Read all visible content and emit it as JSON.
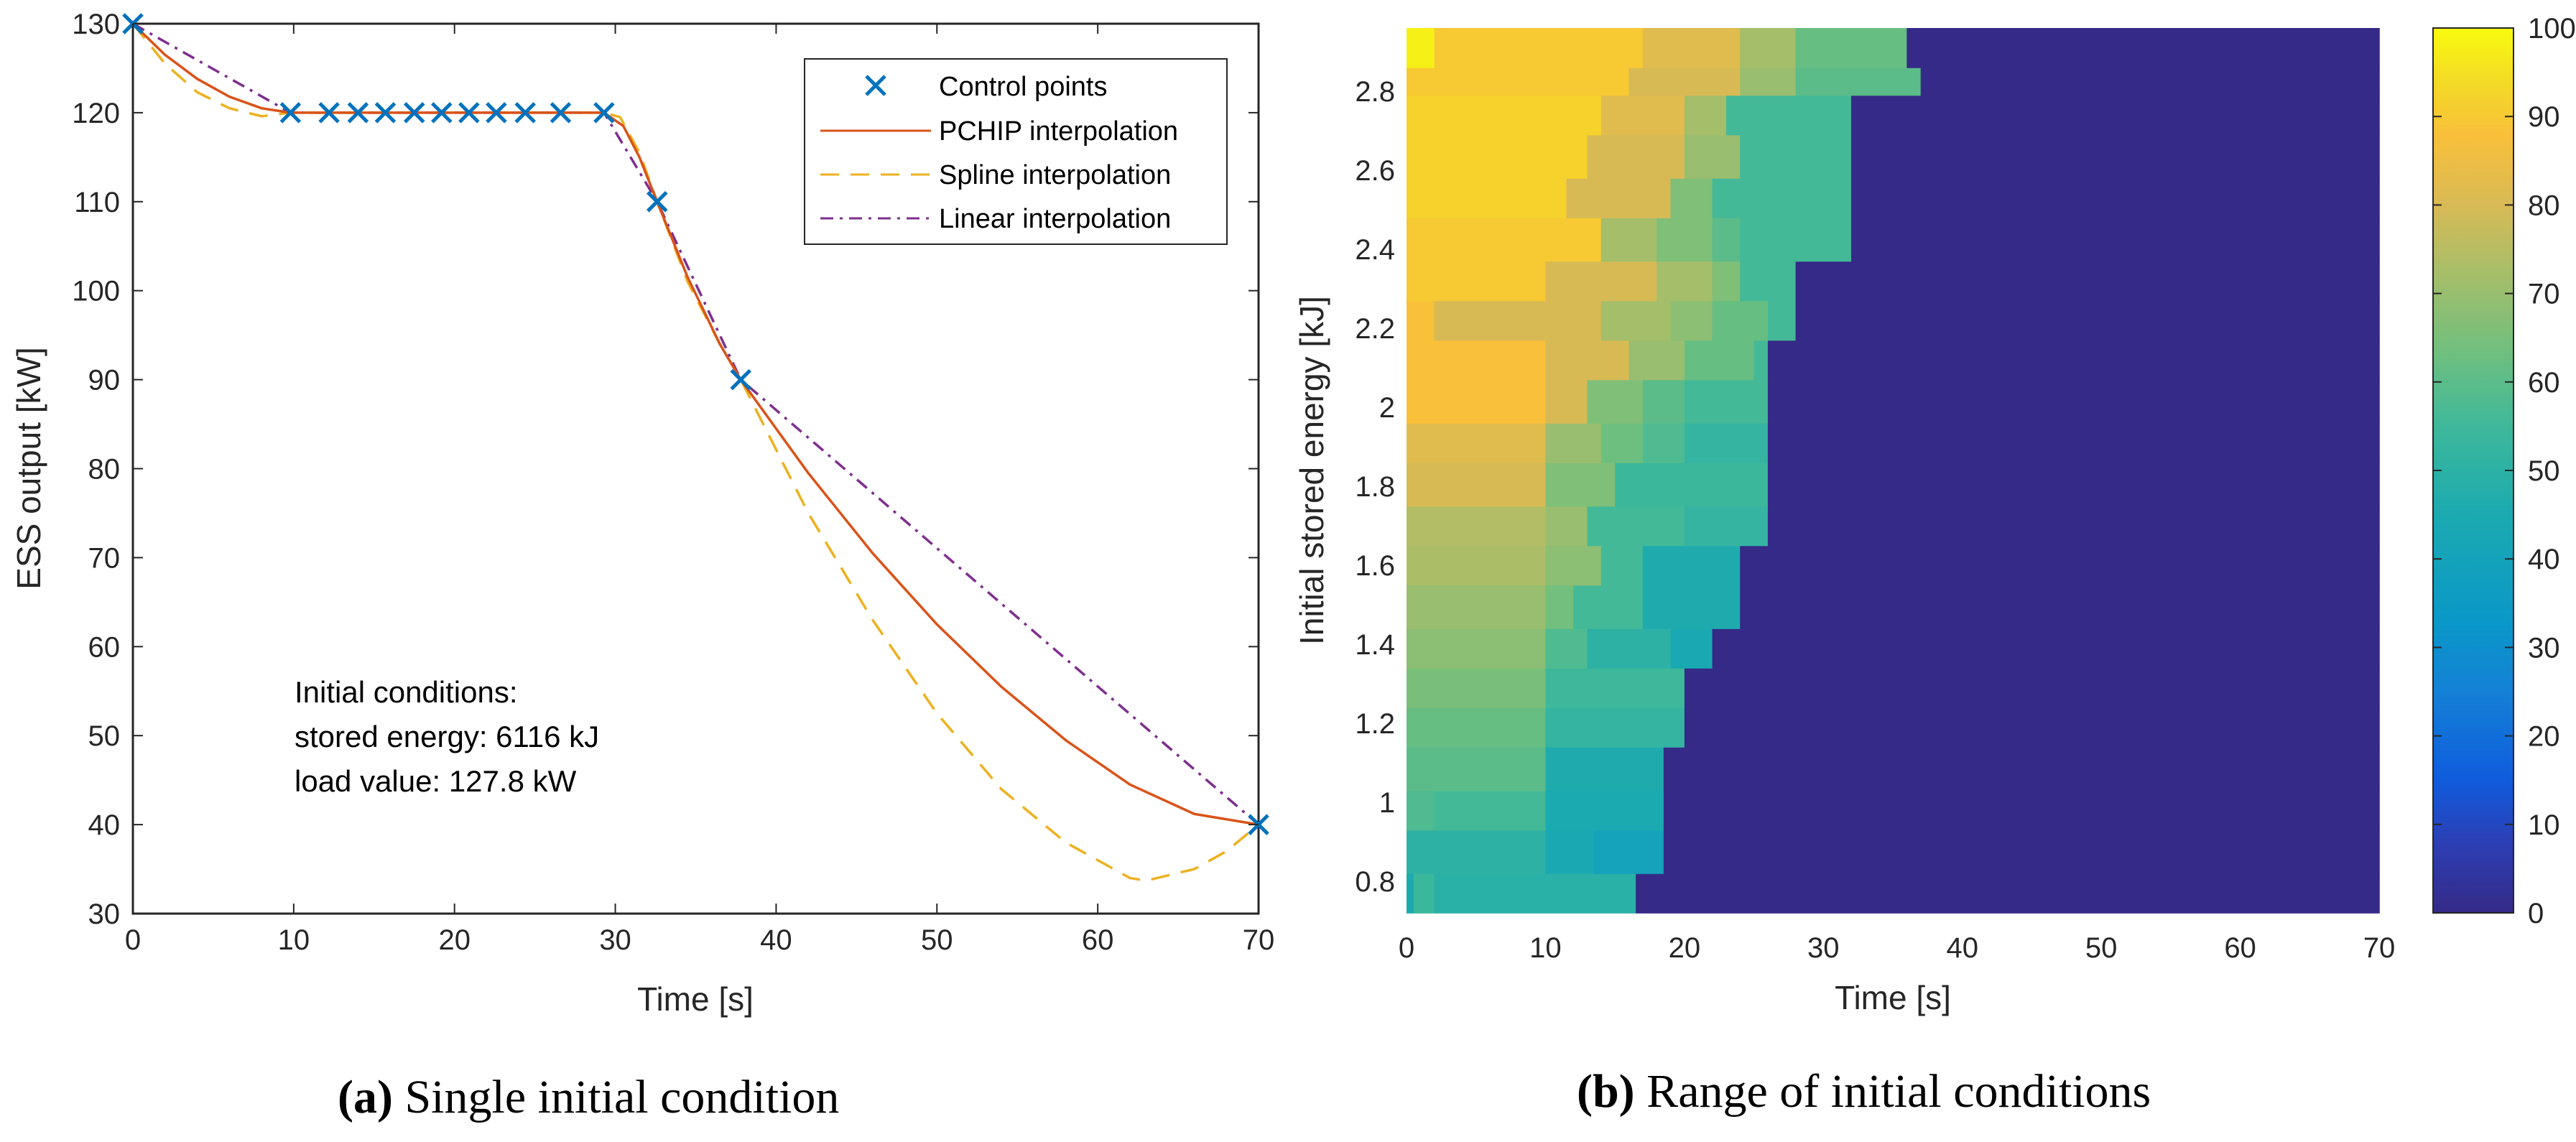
{
  "chart_data": [
    {
      "type": "line",
      "xlabel": "Time [s]",
      "ylabel": "ESS output [kW]",
      "xlim": [
        0,
        70
      ],
      "ylim": [
        30,
        130
      ],
      "xticks": [
        0,
        10,
        20,
        30,
        40,
        50,
        60,
        70
      ],
      "yticks": [
        30,
        40,
        50,
        60,
        70,
        80,
        90,
        100,
        110,
        120,
        130
      ],
      "grid": false,
      "legend_position": "top-right",
      "legend": [
        "Control points",
        "PCHIP interpolation",
        "Spline interpolation",
        "Linear interpolation"
      ],
      "control_points": {
        "x": [
          0,
          9.8,
          12.2,
          14.0,
          15.7,
          17.5,
          19.2,
          20.9,
          22.6,
          24.4,
          26.6,
          29.3,
          32.6,
          37.8,
          70
        ],
        "y": [
          130,
          120,
          120,
          120,
          120,
          120,
          120,
          120,
          120,
          120,
          120,
          120,
          110,
          90,
          40
        ]
      },
      "series": [
        {
          "name": "PCHIP interpolation",
          "style": "solid",
          "color": "#D95319",
          "x": [
            0,
            2,
            4,
            6,
            8,
            9.8,
            29.3,
            30.5,
            31.5,
            32.6,
            34.5,
            36.5,
            37.8,
            42,
            46,
            50,
            54,
            58,
            62,
            66,
            70
          ],
          "y": [
            130,
            126.5,
            123.8,
            121.8,
            120.5,
            120,
            120,
            118.5,
            115,
            110,
            101.5,
            94,
            90,
            79.5,
            70.5,
            62.5,
            55.5,
            49.5,
            44.5,
            41.2,
            40
          ]
        },
        {
          "name": "Spline interpolation",
          "style": "dashed",
          "color": "#EDB120",
          "x": [
            0,
            2,
            4,
            6,
            8,
            9.8,
            29.3,
            30.3,
            31.5,
            32.6,
            34.5,
            36.5,
            37.8,
            42,
            46,
            50,
            54,
            58,
            62,
            63,
            66,
            68,
            70
          ],
          "y": [
            130,
            125.5,
            122.3,
            120.5,
            119.6,
            120,
            120,
            119.5,
            115.5,
            110,
            101,
            94,
            90,
            75,
            63,
            52.5,
            44,
            38,
            34,
            33.7,
            35,
            37,
            40
          ]
        },
        {
          "name": "Linear interpolation",
          "style": "dashdot",
          "color": "#7E2F8E",
          "x": [
            0,
            9.8,
            29.3,
            32.6,
            37.8,
            70
          ],
          "y": [
            130,
            120,
            120,
            110,
            90,
            40
          ]
        }
      ],
      "annotation": [
        "Initial conditions:",
        "stored energy: 6116 kJ",
        "load value: 127.8 kW"
      ]
    },
    {
      "type": "heatmap",
      "xlabel": "Time [s]",
      "ylabel": "Initial stored energy [kJ]",
      "xlim": [
        0,
        70
      ],
      "ylim": [
        0.72,
        2.96
      ],
      "xticks": [
        0,
        10,
        20,
        30,
        40,
        50,
        60,
        70
      ],
      "yticks": [
        0.8,
        1,
        1.2,
        1.4,
        1.6,
        1.8,
        2,
        2.2,
        2.4,
        2.6,
        2.8
      ],
      "colorbar": {
        "min": 0,
        "max": 100,
        "ticks": [
          0,
          10,
          20,
          30,
          40,
          50,
          60,
          70,
          80,
          90,
          100
        ]
      },
      "rows": [
        {
          "y0": 0.72,
          "y1": 0.82,
          "segs": [
            [
              0,
              0.5,
              45
            ],
            [
              0.5,
              2,
              54
            ],
            [
              2,
              16.5,
              49
            ],
            [
              16.5,
              70,
              0
            ]
          ]
        },
        {
          "y0": 0.82,
          "y1": 0.93,
          "segs": [
            [
              0,
              10,
              50
            ],
            [
              10,
              13.5,
              44
            ],
            [
              13.5,
              18.5,
              40
            ],
            [
              18.5,
              70,
              0
            ]
          ]
        },
        {
          "y0": 0.93,
          "y1": 1.03,
          "segs": [
            [
              0,
              2,
              58
            ],
            [
              2,
              10,
              56
            ],
            [
              10,
              18.5,
              45
            ],
            [
              18.5,
              70,
              0
            ]
          ]
        },
        {
          "y0": 1.03,
          "y1": 1.14,
          "segs": [
            [
              0,
              10,
              60
            ],
            [
              10,
              18.5,
              46
            ],
            [
              18.5,
              70,
              0
            ]
          ]
        },
        {
          "y0": 1.14,
          "y1": 1.24,
          "segs": [
            [
              0,
              10,
              62
            ],
            [
              10,
              20,
              52
            ],
            [
              20,
              70,
              0
            ]
          ]
        },
        {
          "y0": 1.24,
          "y1": 1.34,
          "segs": [
            [
              0,
              10,
              65
            ],
            [
              10,
              20,
              55
            ],
            [
              20,
              70,
              0
            ]
          ]
        },
        {
          "y0": 1.34,
          "y1": 1.44,
          "segs": [
            [
              0,
              10,
              68
            ],
            [
              10,
              13,
              58
            ],
            [
              13,
              19,
              50
            ],
            [
              19,
              22,
              44
            ],
            [
              22,
              70,
              0
            ]
          ]
        },
        {
          "y0": 1.44,
          "y1": 1.55,
          "segs": [
            [
              0,
              10,
              70
            ],
            [
              10,
              12,
              64
            ],
            [
              12,
              17,
              56
            ],
            [
              17,
              24,
              46
            ],
            [
              24,
              70,
              0
            ]
          ]
        },
        {
          "y0": 1.55,
          "y1": 1.65,
          "segs": [
            [
              0,
              10,
              73
            ],
            [
              10,
              14,
              68
            ],
            [
              14,
              17,
              56
            ],
            [
              17,
              24,
              46
            ],
            [
              24,
              70,
              0
            ]
          ]
        },
        {
          "y0": 1.65,
          "y1": 1.75,
          "segs": [
            [
              0,
              10,
              74
            ],
            [
              10,
              13,
              70
            ],
            [
              13,
              20,
              56
            ],
            [
              20,
              26,
              52
            ],
            [
              26,
              70,
              0
            ]
          ]
        },
        {
          "y0": 1.75,
          "y1": 1.86,
          "segs": [
            [
              0,
              10,
              80
            ],
            [
              10,
              15,
              66
            ],
            [
              15,
              26,
              54
            ],
            [
              26,
              70,
              0
            ]
          ]
        },
        {
          "y0": 1.86,
          "y1": 1.96,
          "segs": [
            [
              0,
              10,
              82
            ],
            [
              10,
              14,
              70
            ],
            [
              14,
              17,
              63
            ],
            [
              17,
              20,
              58
            ],
            [
              20,
              26,
              52
            ],
            [
              26,
              70,
              0
            ]
          ]
        },
        {
          "y0": 1.96,
          "y1": 2.07,
          "segs": [
            [
              0,
              10,
              88
            ],
            [
              10,
              13,
              80
            ],
            [
              13,
              17,
              66
            ],
            [
              17,
              20,
              60
            ],
            [
              20,
              26,
              56
            ],
            [
              26,
              70,
              0
            ]
          ]
        },
        {
          "y0": 2.07,
          "y1": 2.17,
          "segs": [
            [
              0,
              10,
              88
            ],
            [
              10,
              16,
              80
            ],
            [
              16,
              20,
              70
            ],
            [
              20,
              25,
              62
            ],
            [
              25,
              26,
              56
            ],
            [
              26,
              70,
              0
            ]
          ]
        },
        {
          "y0": 2.17,
          "y1": 2.27,
          "segs": [
            [
              0,
              2,
              88
            ],
            [
              2,
              14,
              80
            ],
            [
              14,
              19,
              72
            ],
            [
              19,
              22,
              68
            ],
            [
              22,
              26,
              62
            ],
            [
              26,
              28,
              56
            ],
            [
              28,
              70,
              0
            ]
          ]
        },
        {
          "y0": 2.27,
          "y1": 2.37,
          "segs": [
            [
              0,
              10,
              90
            ],
            [
              10,
              18,
              80
            ],
            [
              18,
              22,
              72
            ],
            [
              22,
              24,
              66
            ],
            [
              24,
              28,
              56
            ],
            [
              28,
              70,
              0
            ]
          ]
        },
        {
          "y0": 2.37,
          "y1": 2.48,
          "segs": [
            [
              0,
              14,
              90
            ],
            [
              14,
              18,
              72
            ],
            [
              18,
              22,
              66
            ],
            [
              22,
              24,
              60
            ],
            [
              24,
              32,
              56
            ],
            [
              32,
              70,
              0
            ]
          ]
        },
        {
          "y0": 2.48,
          "y1": 2.58,
          "segs": [
            [
              0,
              11.5,
              92
            ],
            [
              11.5,
              19,
              80
            ],
            [
              19,
              22,
              66
            ],
            [
              22,
              32,
              56
            ],
            [
              32,
              70,
              0
            ]
          ]
        },
        {
          "y0": 2.58,
          "y1": 2.69,
          "segs": [
            [
              0,
              13,
              92
            ],
            [
              13,
              20,
              80
            ],
            [
              20,
              24,
              70
            ],
            [
              24,
              32,
              56
            ],
            [
              32,
              70,
              0
            ]
          ]
        },
        {
          "y0": 2.69,
          "y1": 2.79,
          "segs": [
            [
              0,
              14,
              92
            ],
            [
              14,
              20,
              82
            ],
            [
              20,
              23,
              72
            ],
            [
              23,
              32,
              56
            ],
            [
              32,
              70,
              0
            ]
          ]
        },
        {
          "y0": 2.79,
          "y1": 2.86,
          "segs": [
            [
              0,
              16,
              90
            ],
            [
              16,
              24,
              80
            ],
            [
              24,
              28,
              70
            ],
            [
              28,
              37,
              60
            ],
            [
              37,
              70,
              0
            ]
          ]
        },
        {
          "y0": 2.86,
          "y1": 2.96,
          "segs": [
            [
              0,
              2,
              98
            ],
            [
              2,
              17,
              90
            ],
            [
              17,
              24,
              82
            ],
            [
              24,
              28,
              72
            ],
            [
              28,
              36,
              62
            ],
            [
              36,
              70,
              0
            ]
          ]
        }
      ]
    }
  ],
  "captions": {
    "a_label": "(a)",
    "a_text": " Single initial condition",
    "b_label": "(b)",
    "b_text": " Range of initial conditions"
  }
}
